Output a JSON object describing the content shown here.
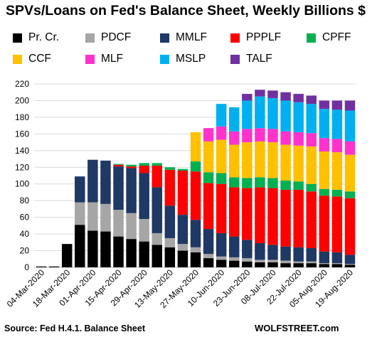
{
  "chart_data": {
    "type": "bar",
    "stacked": true,
    "title": "SPVs/Loans  on Fed's Balance Sheet, Weekly Billions $",
    "ylim": [
      0,
      220
    ],
    "yticks": [
      0,
      20,
      40,
      60,
      80,
      100,
      120,
      140,
      160,
      180,
      200,
      220
    ],
    "grid": true,
    "legend_position": "top",
    "x_tick_labels": [
      "04-Mar-2020",
      "18-Mar-2020",
      "01-Apr-2020",
      "15-Apr-2020",
      "29-Apr-2020",
      "13-May-2020",
      "27-May-2020",
      "10-Jun-2020",
      "23-Jun-2020",
      "08-Jul-2020",
      "22-Jul-2020",
      "05-Aug-2020",
      "19-Aug-2020"
    ],
    "categories": [
      "04-Mar-2020",
      "11-Mar-2020",
      "18-Mar-2020",
      "25-Mar-2020",
      "01-Apr-2020",
      "08-Apr-2020",
      "15-Apr-2020",
      "22-Apr-2020",
      "29-Apr-2020",
      "06-May-2020",
      "13-May-2020",
      "20-May-2020",
      "27-May-2020",
      "03-Jun-2020",
      "10-Jun-2020",
      "17-Jun-2020",
      "23-Jun-2020",
      "01-Jul-2020",
      "08-Jul-2020",
      "15-Jul-2020",
      "22-Jul-2020",
      "29-Jul-2020",
      "05-Aug-2020",
      "12-Aug-2020",
      "19-Aug-2020"
    ],
    "series": [
      {
        "name": "Pr. Cr.",
        "color": "#000000",
        "values": [
          1,
          1,
          28,
          51,
          44,
          43,
          37,
          34,
          31,
          27,
          24,
          20,
          18,
          11,
          9,
          8,
          7,
          6,
          6,
          5,
          5,
          5,
          4,
          4,
          3
        ]
      },
      {
        "name": "PDCF",
        "color": "#a6a6a6",
        "values": [
          0,
          0,
          0,
          27,
          34,
          33,
          32,
          31,
          27,
          14,
          11,
          8,
          6,
          5,
          4,
          4,
          4,
          3,
          3,
          3,
          2,
          2,
          1,
          1,
          1
        ]
      },
      {
        "name": "MMLF",
        "color": "#1f3864",
        "values": [
          0,
          0,
          0,
          31,
          51,
          52,
          52,
          54,
          55,
          55,
          39,
          35,
          33,
          30,
          28,
          25,
          22,
          20,
          18,
          17,
          17,
          16,
          14,
          13,
          11
        ]
      },
      {
        "name": "PPPLF",
        "color": "#ff0000",
        "values": [
          0,
          0,
          0,
          0,
          0,
          0,
          2,
          2,
          9,
          26,
          43,
          53,
          58,
          55,
          59,
          59,
          62,
          67,
          68,
          68,
          69,
          68,
          67,
          67,
          68
        ]
      },
      {
        "name": "CPFF",
        "color": "#00b050",
        "values": [
          0,
          0,
          0,
          0,
          0,
          0,
          1,
          2,
          3,
          3,
          3,
          2,
          12,
          13,
          13,
          12,
          12,
          12,
          12,
          11,
          10,
          9,
          8,
          8,
          8
        ]
      },
      {
        "name": "CCF",
        "color": "#ffc000",
        "values": [
          0,
          0,
          0,
          0,
          0,
          0,
          0,
          0,
          0,
          0,
          0,
          0,
          35,
          37,
          40,
          39,
          43,
          43,
          43,
          43,
          43,
          45,
          45,
          45,
          44
        ]
      },
      {
        "name": "MLF",
        "color": "#ff33cc",
        "values": [
          0,
          0,
          0,
          0,
          0,
          0,
          0,
          0,
          0,
          0,
          0,
          0,
          0,
          16,
          16,
          16,
          16,
          16,
          16,
          16,
          16,
          16,
          16,
          16,
          16
        ]
      },
      {
        "name": "MSLP",
        "color": "#00b0f0",
        "values": [
          0,
          0,
          0,
          0,
          0,
          0,
          0,
          0,
          0,
          0,
          0,
          0,
          0,
          0,
          27,
          29,
          34,
          38,
          37,
          37,
          36,
          35,
          35,
          35,
          37
        ]
      },
      {
        "name": "TALF",
        "color": "#7030a0",
        "values": [
          0,
          0,
          0,
          0,
          0,
          0,
          0,
          0,
          0,
          0,
          0,
          0,
          0,
          0,
          0,
          0,
          8,
          8,
          9,
          10,
          10,
          10,
          10,
          11,
          12
        ]
      }
    ]
  },
  "footer": {
    "source": "Source: Fed H.4.1. Balance Sheet",
    "logo": "WOLFSTREET.com"
  }
}
